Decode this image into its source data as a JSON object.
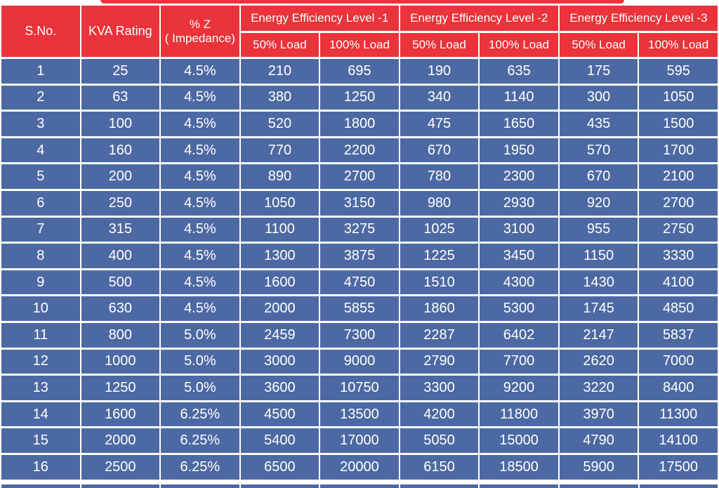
{
  "colors": {
    "header_red": "#ea333a",
    "row_blue": "#4d69a3",
    "text_white": "#ffffff"
  },
  "header": {
    "sno": "S.No.",
    "kva_rating": "KVA Rating",
    "impedance_line1": "% Z",
    "impedance_line2": "( Impedance)",
    "group_labels": [
      "Energy Efficiency Level -1",
      "Energy Efficiency Level -2",
      "Energy Efficiency Level -3"
    ],
    "load_labels": [
      "50% Load",
      "100% Load"
    ]
  },
  "chart_data": {
    "type": "table",
    "title": "",
    "columns": [
      "S.No.",
      "KVA Rating",
      "% Z ( Impedance)",
      "Energy Efficiency Level -1 / 50% Load",
      "Energy Efficiency Level -1 / 100% Load",
      "Energy Efficiency Level -2 / 50% Load",
      "Energy Efficiency Level -2 / 100% Load",
      "Energy Efficiency Level -3 / 50% Load",
      "Energy Efficiency Level -3 / 100% Load"
    ],
    "rows": [
      [
        "1",
        "25",
        "4.5%",
        "210",
        "695",
        "190",
        "635",
        "175",
        "595"
      ],
      [
        "2",
        "63",
        "4.5%",
        "380",
        "1250",
        "340",
        "1140",
        "300",
        "1050"
      ],
      [
        "3",
        "100",
        "4.5%",
        "520",
        "1800",
        "475",
        "1650",
        "435",
        "1500"
      ],
      [
        "4",
        "160",
        "4.5%",
        "770",
        "2200",
        "670",
        "1950",
        "570",
        "1700"
      ],
      [
        "5",
        "200",
        "4.5%",
        "890",
        "2700",
        "780",
        "2300",
        "670",
        "2100"
      ],
      [
        "6",
        "250",
        "4.5%",
        "1050",
        "3150",
        "980",
        "2930",
        "920",
        "2700"
      ],
      [
        "7",
        "315",
        "4.5%",
        "1100",
        "3275",
        "1025",
        "3100",
        "955",
        "2750"
      ],
      [
        "8",
        "400",
        "4.5%",
        "1300",
        "3875",
        "1225",
        "3450",
        "1150",
        "3330"
      ],
      [
        "9",
        "500",
        "4.5%",
        "1600",
        "4750",
        "1510",
        "4300",
        "1430",
        "4100"
      ],
      [
        "10",
        "630",
        "4.5%",
        "2000",
        "5855",
        "1860",
        "5300",
        "1745",
        "4850"
      ],
      [
        "11",
        "800",
        "5.0%",
        "2459",
        "7300",
        "2287",
        "6402",
        "2147",
        "5837"
      ],
      [
        "12",
        "1000",
        "5.0%",
        "3000",
        "9000",
        "2790",
        "7700",
        "2620",
        "7000"
      ],
      [
        "13",
        "1250",
        "5.0%",
        "3600",
        "10750",
        "3300",
        "9200",
        "3220",
        "8400"
      ],
      [
        "14",
        "1600",
        "6.25%",
        "4500",
        "13500",
        "4200",
        "11800",
        "3970",
        "11300"
      ],
      [
        "15",
        "2000",
        "6.25%",
        "5400",
        "17000",
        "5050",
        "15000",
        "4790",
        "14100"
      ],
      [
        "16",
        "2500",
        "6.25%",
        "6500",
        "20000",
        "6150",
        "18500",
        "5900",
        "17500"
      ]
    ]
  }
}
